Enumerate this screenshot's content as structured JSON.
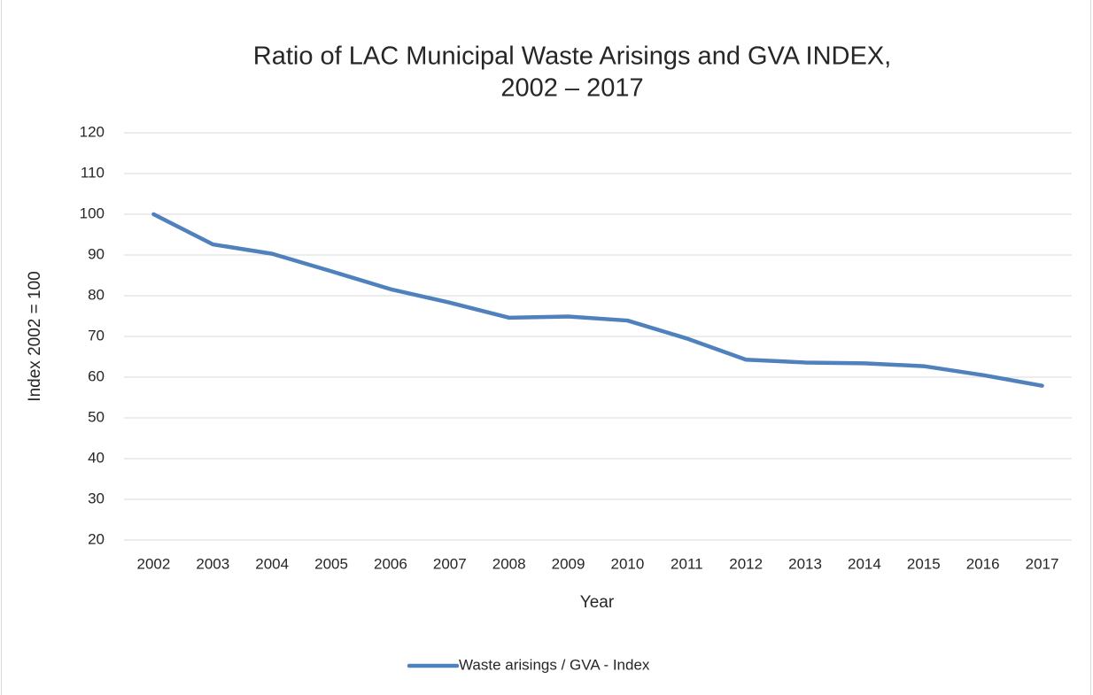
{
  "chart_data": {
    "type": "line",
    "title": [
      "Ratio of LAC Municipal Waste Arisings and GVA INDEX,",
      "2002 – 2017"
    ],
    "x_label": "Year",
    "y_label": "Index 2002 = 100",
    "categories": [
      "2002",
      "2003",
      "2004",
      "2005",
      "2006",
      "2007",
      "2008",
      "2009",
      "2010",
      "2011",
      "2012",
      "2013",
      "2014",
      "2015",
      "2016",
      "2017"
    ],
    "series": [
      {
        "name": "Waste arisings / GVA - Index",
        "color": "#4f81bd",
        "values": [
          100,
          92.6,
          90.3,
          86.0,
          81.6,
          78.3,
          74.6,
          74.9,
          73.9,
          69.5,
          64.3,
          63.6,
          63.4,
          62.7,
          60.5,
          57.9
        ]
      }
    ],
    "ylim": [
      20,
      120
    ],
    "yticks": [
      20,
      30,
      40,
      50,
      60,
      70,
      80,
      90,
      100,
      110,
      120
    ],
    "grid": true,
    "legend": "bottom"
  }
}
